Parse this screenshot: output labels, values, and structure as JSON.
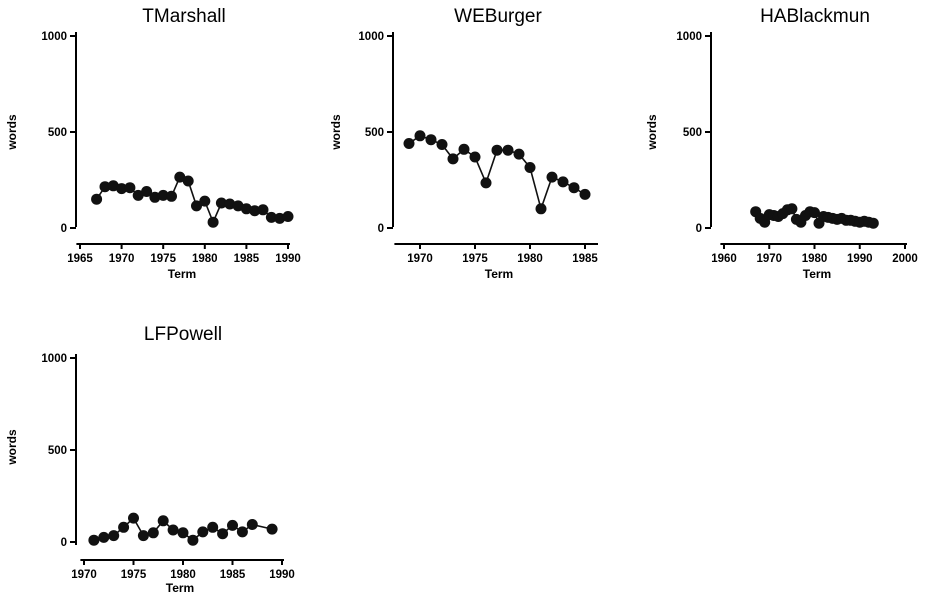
{
  "chart_data": [
    {
      "type": "line",
      "title": "TMarshall",
      "xlabel": "Term",
      "ylabel": "words",
      "xlim": [
        1965,
        1990
      ],
      "ylim": [
        0,
        1000
      ],
      "xticks": [
        "1965",
        "1970",
        "1975",
        "1980",
        "1985",
        "1990"
      ],
      "yticks": [
        "0",
        "500",
        "1000"
      ],
      "grid": false,
      "series": [
        {
          "x": [
            1967,
            1968,
            1969,
            1970,
            1971,
            1972,
            1973,
            1974,
            1975,
            1976,
            1977,
            1978,
            1979,
            1980,
            1981,
            1982,
            1983,
            1984,
            1985,
            1986,
            1987,
            1988,
            1989,
            1990
          ],
          "y": [
            150,
            215,
            220,
            205,
            210,
            170,
            190,
            160,
            170,
            165,
            265,
            245,
            115,
            140,
            30,
            130,
            125,
            115,
            100,
            90,
            95,
            55,
            50,
            60
          ]
        }
      ]
    },
    {
      "type": "line",
      "title": "WEBurger",
      "xlabel": "Term",
      "ylabel": "words",
      "xlim": [
        1968,
        1986
      ],
      "ylim": [
        0,
        1000
      ],
      "xticks": [
        "1970",
        "1975",
        "1980",
        "1985"
      ],
      "yticks": [
        "0",
        "500",
        "1000"
      ],
      "grid": false,
      "series": [
        {
          "x": [
            1969,
            1970,
            1971,
            1972,
            1973,
            1974,
            1975,
            1976,
            1977,
            1978,
            1979,
            1980,
            1981,
            1982,
            1983,
            1984,
            1985
          ],
          "y": [
            440,
            480,
            460,
            435,
            360,
            410,
            370,
            235,
            405,
            405,
            385,
            315,
            100,
            265,
            240,
            210,
            175
          ]
        }
      ]
    },
    {
      "type": "line",
      "title": "HABlackmun",
      "xlabel": "Term",
      "ylabel": "words",
      "xlim": [
        1960,
        2000
      ],
      "ylim": [
        0,
        1000
      ],
      "xticks": [
        "1960",
        "1970",
        "1980",
        "1990",
        "2000"
      ],
      "yticks": [
        "0",
        "500",
        "1000"
      ],
      "grid": false,
      "series": [
        {
          "x": [
            1967,
            1968,
            1969,
            1970,
            1971,
            1972,
            1973,
            1974,
            1975,
            1976,
            1977,
            1978,
            1979,
            1980,
            1981,
            1982,
            1983,
            1984,
            1985,
            1986,
            1987,
            1988,
            1989,
            1990,
            1991,
            1992,
            1993
          ],
          "y": [
            85,
            50,
            30,
            70,
            65,
            60,
            75,
            95,
            100,
            45,
            30,
            65,
            85,
            80,
            25,
            60,
            55,
            50,
            45,
            50,
            40,
            40,
            35,
            30,
            35,
            30,
            25
          ]
        }
      ]
    },
    {
      "type": "line",
      "title": "LFPowell",
      "xlabel": "Term",
      "ylabel": "words",
      "xlim": [
        1970,
        1990
      ],
      "ylim": [
        0,
        1000
      ],
      "xticks": [
        "1970",
        "1975",
        "1980",
        "1985",
        "1990"
      ],
      "yticks": [
        "0",
        "500",
        "1000"
      ],
      "grid": false,
      "series": [
        {
          "x": [
            1971,
            1972,
            1973,
            1974,
            1975,
            1976,
            1977,
            1978,
            1979,
            1980,
            1981,
            1982,
            1983,
            1984,
            1985,
            1986,
            1987,
            1989
          ],
          "y": [
            10,
            25,
            35,
            80,
            130,
            35,
            50,
            115,
            65,
            50,
            10,
            55,
            80,
            45,
            90,
            55,
            95,
            70
          ]
        }
      ]
    }
  ]
}
